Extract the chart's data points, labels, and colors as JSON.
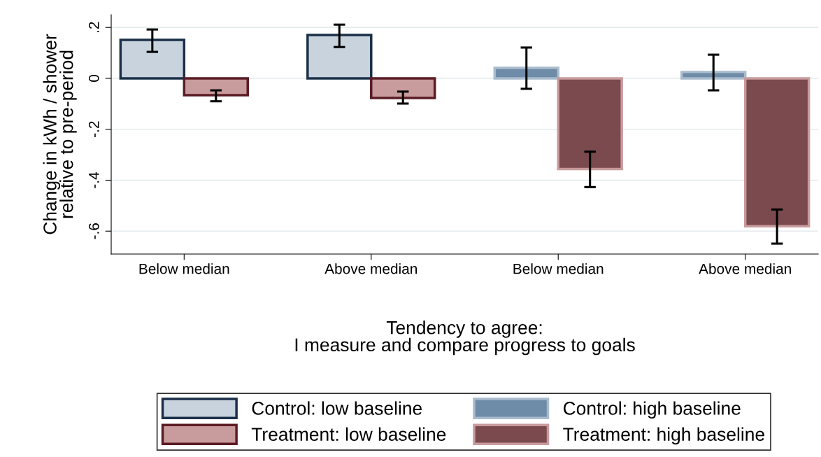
{
  "chart_data": {
    "type": "bar",
    "categories": [
      "Below median",
      "Above median",
      "Below median",
      "Above median"
    ],
    "xlabel": "Tendency to agree:\nI measure and compare progress to goals",
    "ylabel": "Change in kWh / shower\nrelative to pre-period",
    "series": [
      {
        "name": "Control: low baseline",
        "color": "#c9d3de",
        "values": [
          0.151,
          0.17,
          null,
          null
        ],
        "errors": [
          [
            0.104,
            0.192
          ],
          [
            0.123,
            0.211
          ],
          null,
          null
        ]
      },
      {
        "name": "Treatment: low baseline",
        "color": "#c89b9d",
        "values": [
          -0.066,
          -0.077,
          null,
          null
        ],
        "errors": [
          [
            -0.09,
            -0.047
          ],
          [
            -0.099,
            -0.052
          ],
          null,
          null
        ]
      },
      {
        "name": "Control: high baseline",
        "color": "#6e8ba7",
        "values": [
          null,
          null,
          0.041,
          0.025
        ],
        "errors": [
          null,
          null,
          [
            -0.041,
            0.121
          ],
          [
            -0.047,
            0.093
          ]
        ]
      },
      {
        "name": "Treatment: high baseline",
        "color": "#7a4a4e",
        "values": [
          null,
          null,
          -0.356,
          -0.581
        ],
        "errors": [
          null,
          null,
          [
            -0.427,
            -0.288
          ],
          [
            -0.649,
            -0.515
          ]
        ]
      }
    ],
    "ylim": [
      -0.69,
      0.25
    ],
    "yticks": [
      {
        "value": 0.2,
        "label": ".2"
      },
      0,
      {
        "value": -0.2,
        "label": "-.2"
      },
      {
        "value": -0.4,
        "label": "-.4"
      },
      {
        "value": -0.6,
        "label": "-.6"
      }
    ],
    "grid": "y",
    "legend": "bottom"
  }
}
